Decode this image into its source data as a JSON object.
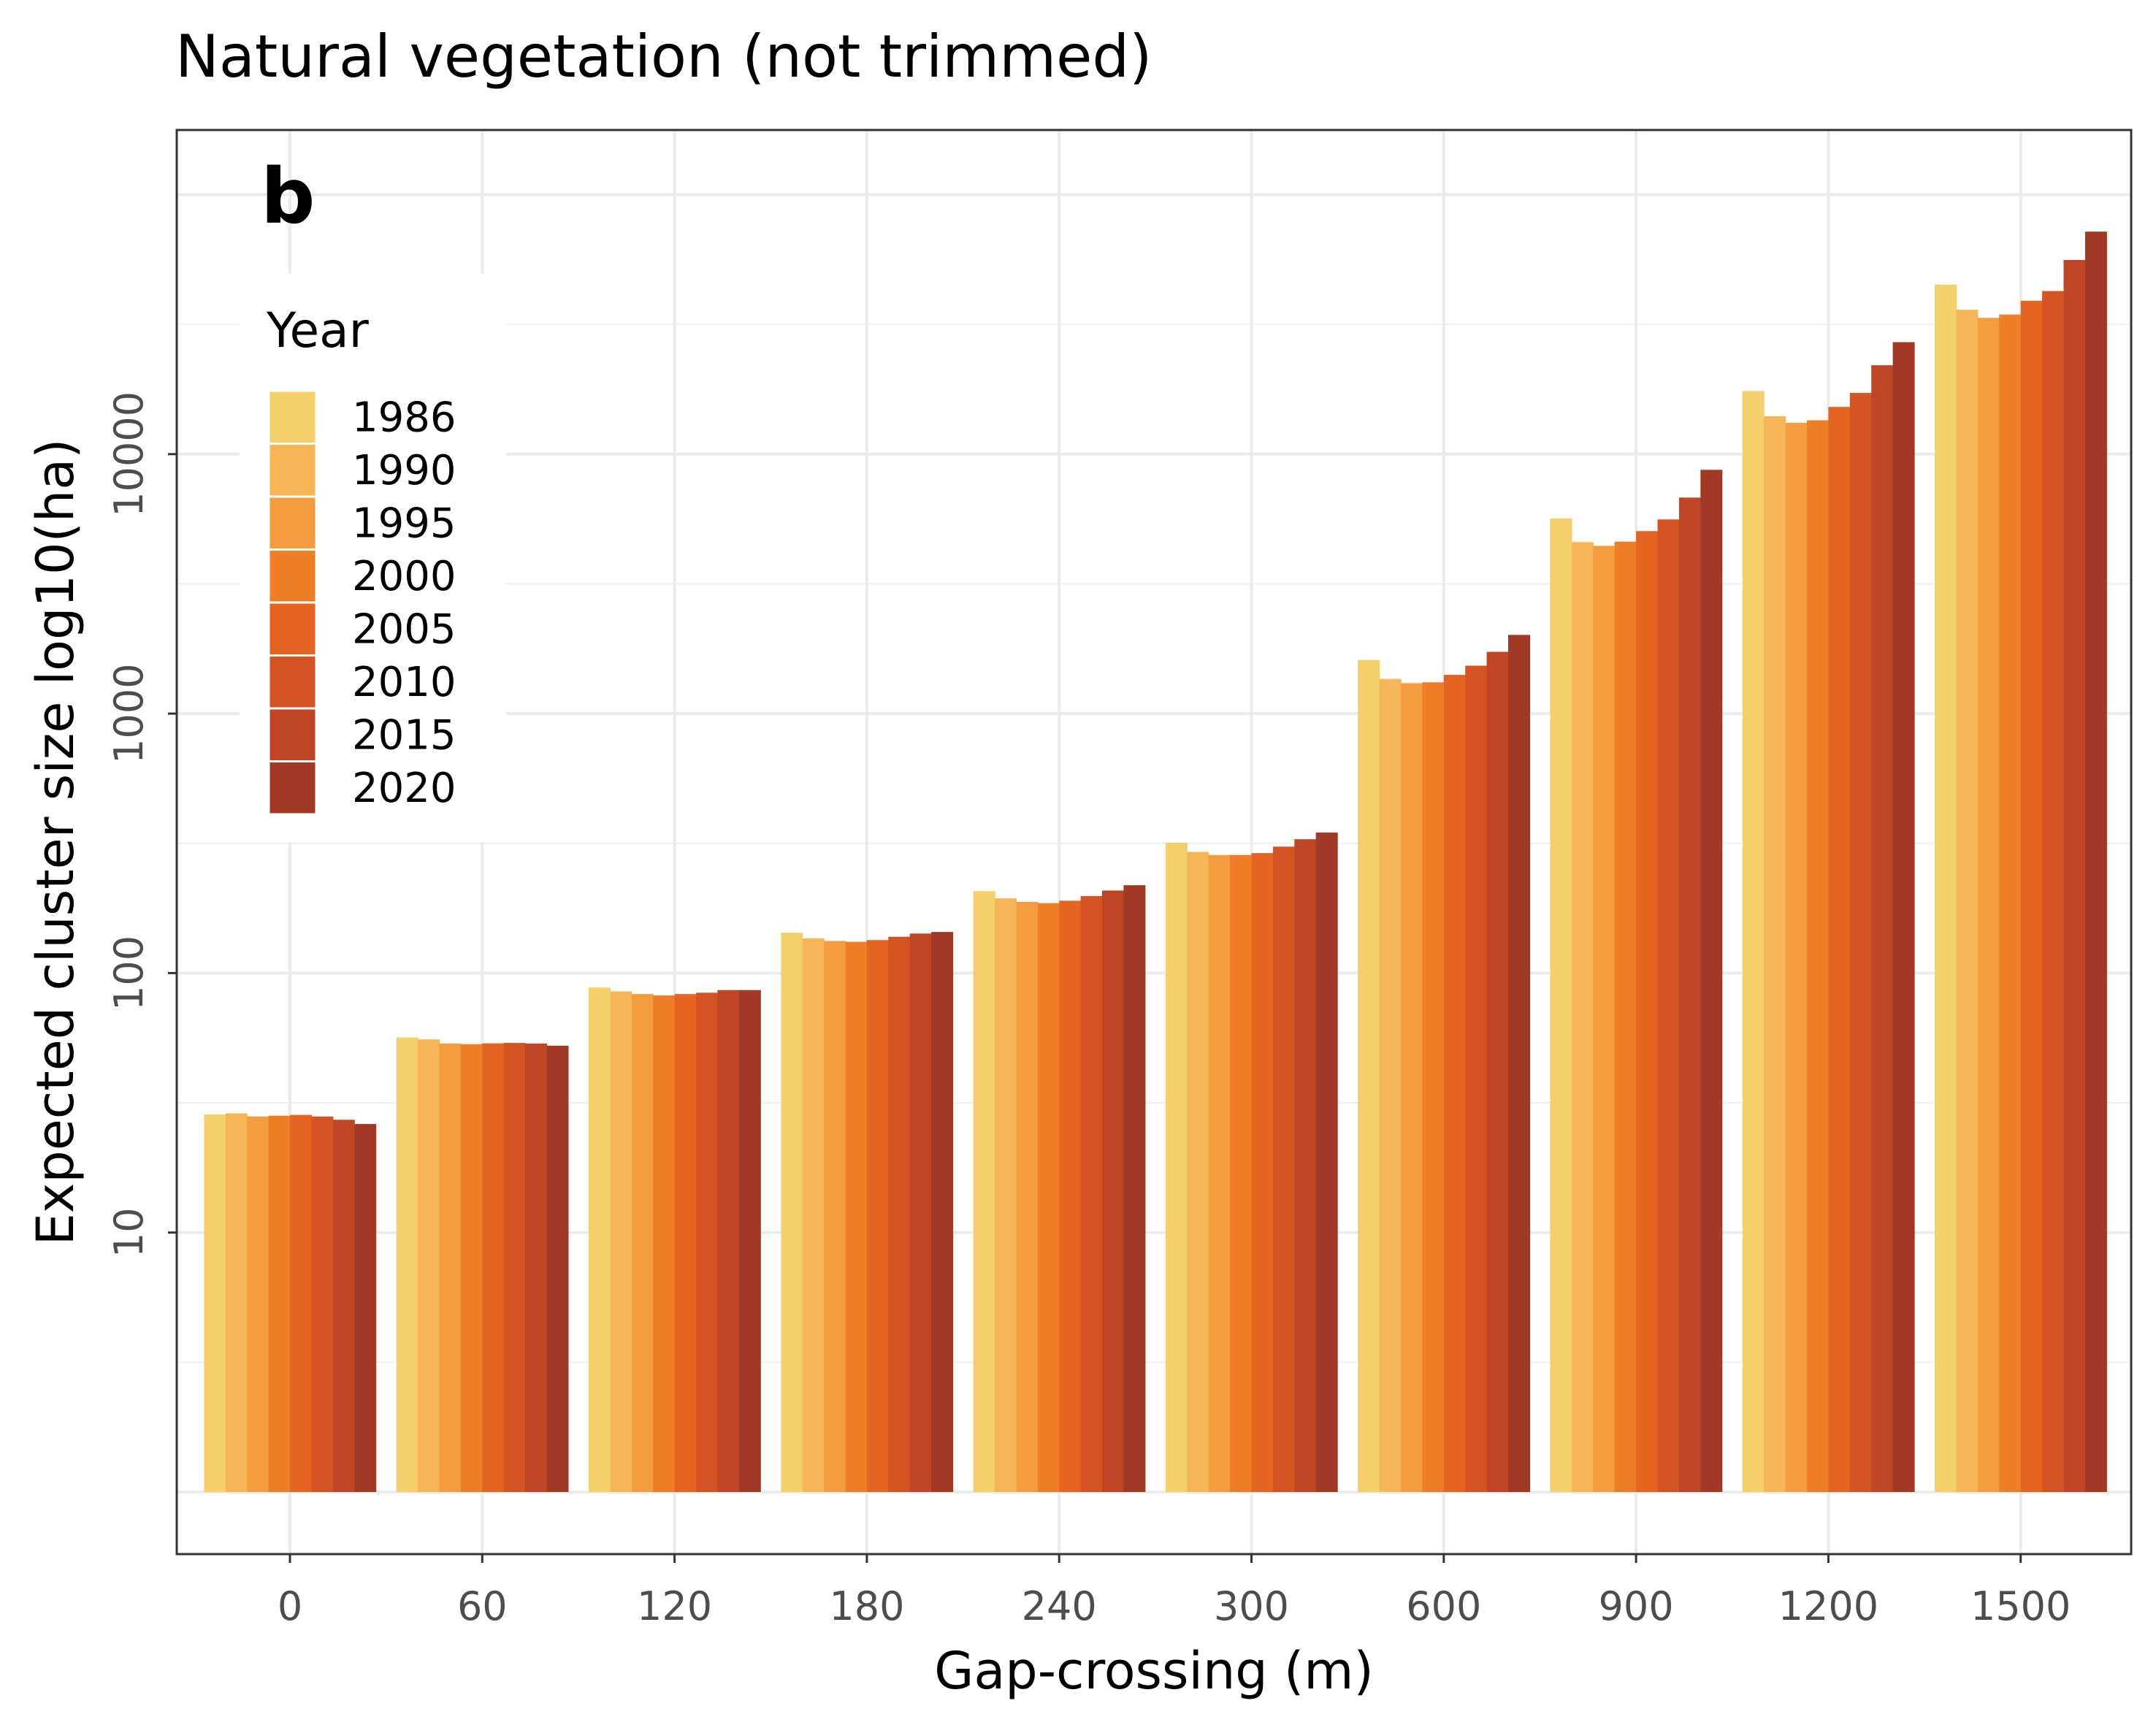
{
  "chart_data": {
    "type": "bar",
    "title": "Natural vegetation (not trimmed)",
    "panel_tag": "b",
    "xlabel": "Gap-crossing (m)",
    "ylabel": "Expected cluster size log10(ha)",
    "y_scale": "log10",
    "ylim": [
      0.1,
      500000
    ],
    "y_ticks": [
      10,
      100,
      1000,
      10000
    ],
    "y_tick_labels": [
      "10",
      "100",
      "1000",
      "10000"
    ],
    "grid": true,
    "legend_position": "top-left",
    "legend_title": "Year",
    "categories": [
      "0",
      "60",
      "120",
      "180",
      "240",
      "300",
      "600",
      "900",
      "1200",
      "1500"
    ],
    "series": [
      {
        "name": "1986",
        "color": "#F4D06A",
        "values": [
          28.5,
          56.5,
          88,
          143,
          207,
          318,
          1610,
          5650,
          17500,
          45000
        ]
      },
      {
        "name": "1990",
        "color": "#F6B657",
        "values": [
          28.8,
          55.5,
          85,
          136,
          194,
          293,
          1360,
          4580,
          14000,
          36000
        ]
      },
      {
        "name": "1995",
        "color": "#F49D40",
        "values": [
          28.0,
          53.5,
          83,
          133,
          188,
          285,
          1310,
          4430,
          13200,
          33500
        ]
      },
      {
        "name": "2000",
        "color": "#EF7E28",
        "values": [
          28.2,
          53.2,
          82,
          132,
          186,
          285,
          1320,
          4600,
          13500,
          34500
        ]
      },
      {
        "name": "2005",
        "color": "#E46522",
        "values": [
          28.4,
          53.6,
          83,
          134,
          190,
          290,
          1410,
          5050,
          15200,
          39000
        ]
      },
      {
        "name": "2010",
        "color": "#D55423",
        "values": [
          28.0,
          53.8,
          84,
          138,
          198,
          307,
          1530,
          5600,
          17200,
          42500
        ]
      },
      {
        "name": "2015",
        "color": "#BF4625",
        "values": [
          27.2,
          53.5,
          86,
          142,
          208,
          328,
          1730,
          6800,
          22000,
          56000
        ]
      },
      {
        "name": "2020",
        "color": "#A03A26",
        "values": [
          26.2,
          52.5,
          86,
          144,
          218,
          348,
          2010,
          8700,
          27000,
          72000
        ]
      }
    ]
  }
}
